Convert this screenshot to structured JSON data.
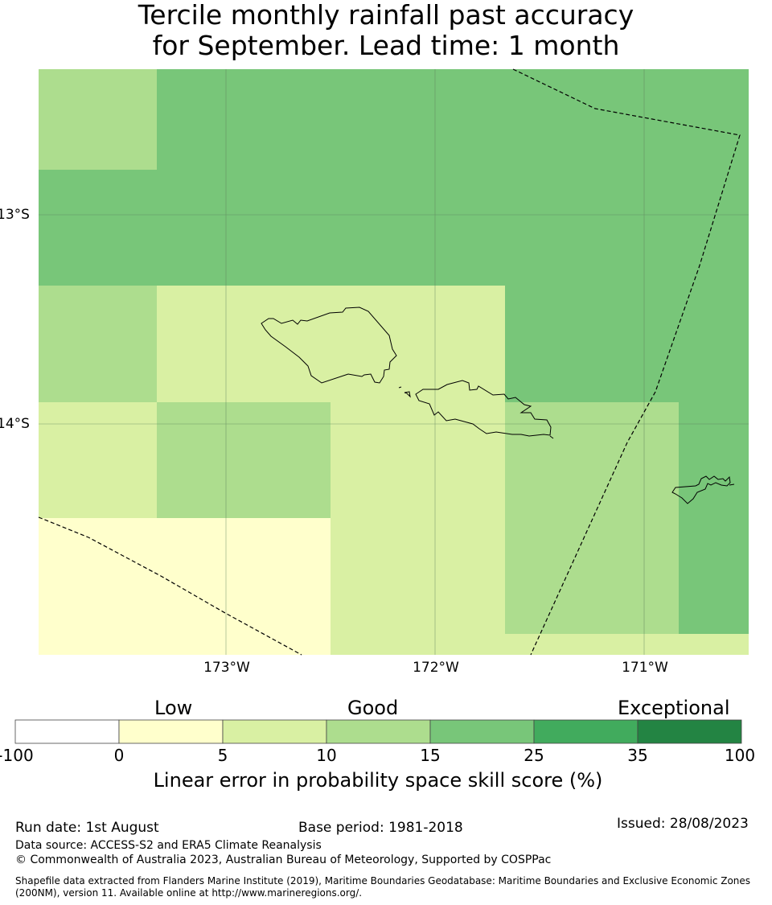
{
  "title": {
    "line1": "Tercile monthly rainfall past accuracy",
    "line2": "for September. Lead time: 1 month"
  },
  "map": {
    "x_ticks": [
      "173°W",
      "172°W",
      "171°W"
    ],
    "y_ticks": [
      "13°S",
      "14°S"
    ],
    "colors": {
      "low": "#ffffcc",
      "light": "#d9f0a3",
      "mid": "#addd8e",
      "good": "#78c679",
      "grid": "#5a7d5a",
      "coast": "#000000",
      "boundary": "#000000"
    }
  },
  "legend": {
    "categories": [
      "Low",
      "Good",
      "Exceptional"
    ],
    "ticks": [
      "-100",
      "0",
      "5",
      "10",
      "15",
      "25",
      "35",
      "100"
    ],
    "colors": [
      "#ffffff",
      "#ffffcc",
      "#d9f0a3",
      "#addd8e",
      "#78c679",
      "#41ab5d",
      "#238443"
    ],
    "label": "Linear error in probability space skill score (%)"
  },
  "footer": {
    "run_date": "Run date: 1st August",
    "base_period": "Base period: 1981-2018",
    "issued": "Issued: 28/08/2023",
    "data_source": "Data source: ACCESS-S2 and ERA5 Climate Reanalysis",
    "copyright": "© Commonwealth of Australia 2023, Australian Bureau of Meteorology, Supported by COSPPac",
    "shapefile_line1": "Shapefile data extracted from Flanders Marine Institute (2019), Maritime Boundaries Geodatabase: Maritime Boundaries and Exclusive Economic Zones",
    "shapefile_line2": "(200NM), version 11. Available online at http://www.marineregions.org/."
  }
}
